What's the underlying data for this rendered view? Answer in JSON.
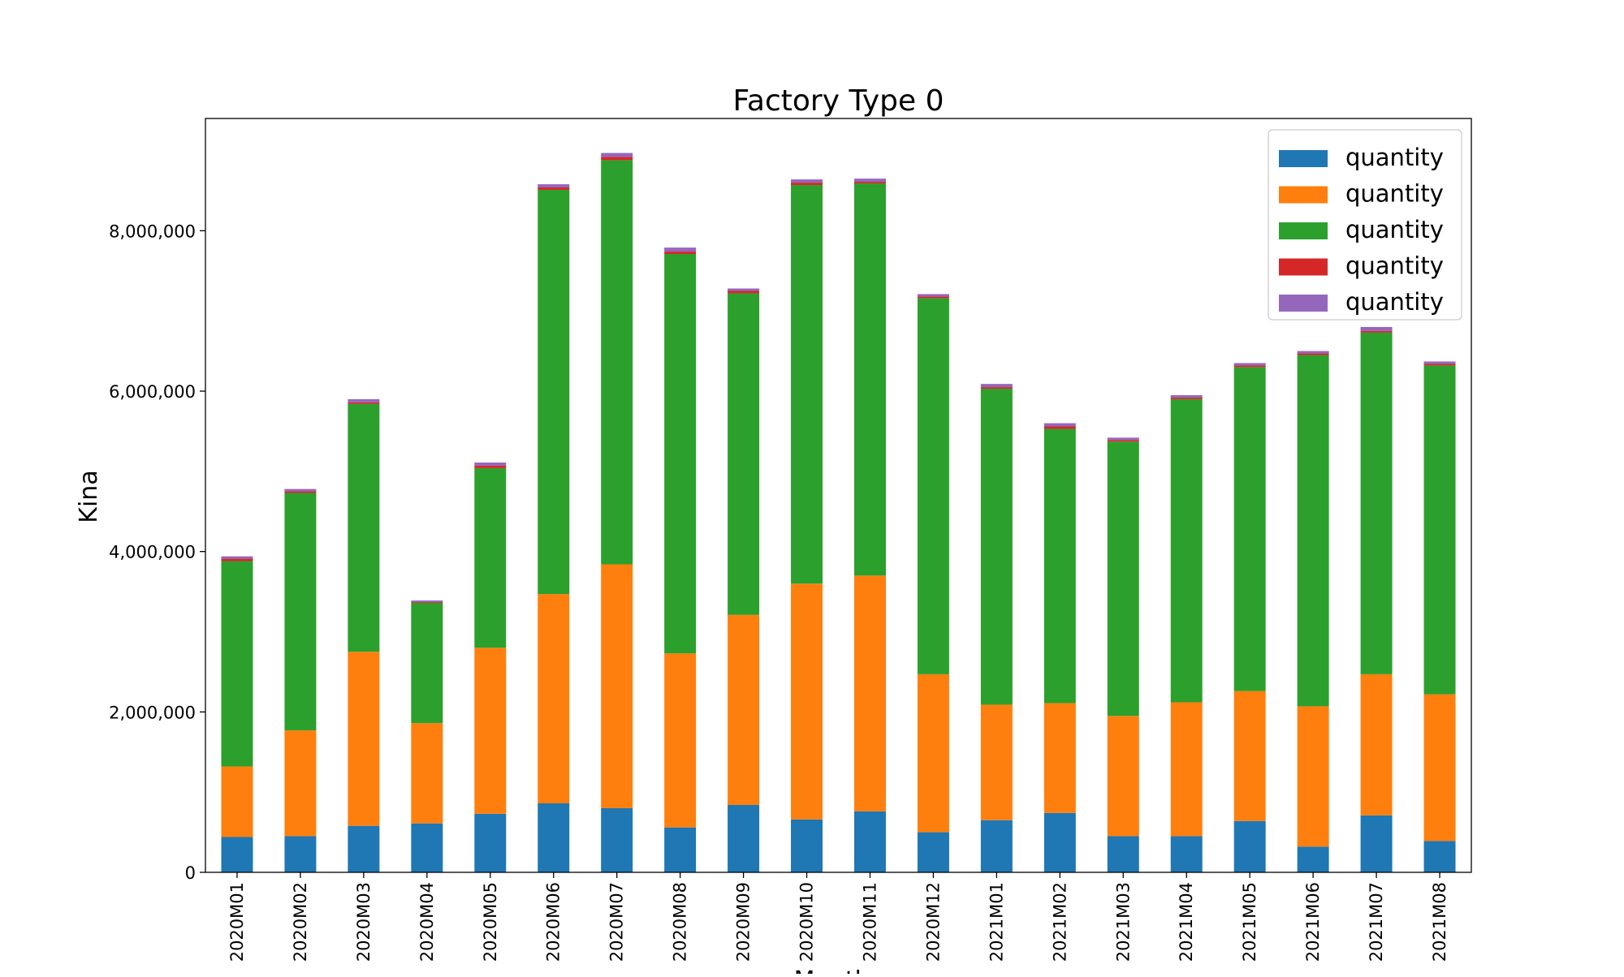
{
  "chart_data": {
    "type": "bar",
    "stacked": true,
    "title": "Factory Type 0",
    "xlabel": "Months",
    "ylabel": "Kina",
    "ylim": [
      0,
      9400000
    ],
    "yticks": [
      0,
      2000000,
      4000000,
      6000000,
      8000000
    ],
    "ytick_labels": [
      "0",
      "2,000,000",
      "4,000,000",
      "6,000,000",
      "8,000,000"
    ],
    "grid": false,
    "legend_position": "top-right",
    "categories": [
      "2020M01",
      "2020M02",
      "2020M03",
      "2020M04",
      "2020M05",
      "2020M06",
      "2020M07",
      "2020M08",
      "2020M09",
      "2020M10",
      "2020M11",
      "2020M12",
      "2021M01",
      "2021M02",
      "2021M03",
      "2021M04",
      "2021M05",
      "2021M06",
      "2021M07",
      "2021M08"
    ],
    "series": [
      {
        "name": "quantity",
        "color": "#1f77b4",
        "values": [
          440000,
          450000,
          580000,
          610000,
          730000,
          860000,
          800000,
          560000,
          840000,
          660000,
          760000,
          500000,
          650000,
          740000,
          450000,
          450000,
          640000,
          320000,
          710000,
          390000
        ]
      },
      {
        "name": "quantity",
        "color": "#ff7f0e",
        "values": [
          880000,
          1320000,
          2170000,
          1250000,
          2070000,
          2610000,
          3040000,
          2170000,
          2370000,
          2940000,
          2940000,
          1970000,
          1440000,
          1370000,
          1500000,
          1670000,
          1620000,
          1750000,
          1760000,
          1830000
        ]
      },
      {
        "name": "quantity",
        "color": "#2ca02c",
        "values": [
          2560000,
          2960000,
          3090000,
          1500000,
          2240000,
          5040000,
          5040000,
          4980000,
          4010000,
          4970000,
          4890000,
          4690000,
          3940000,
          3420000,
          3420000,
          3780000,
          4040000,
          4380000,
          4260000,
          4100000
        ]
      },
      {
        "name": "quantity",
        "color": "#d62728",
        "values": [
          30000,
          20000,
          20000,
          10000,
          30000,
          30000,
          40000,
          30000,
          30000,
          30000,
          20000,
          20000,
          20000,
          30000,
          20000,
          20000,
          20000,
          20000,
          20000,
          20000
        ]
      },
      {
        "name": "quantity",
        "color": "#9467bd",
        "values": [
          30000,
          30000,
          40000,
          20000,
          40000,
          40000,
          50000,
          50000,
          30000,
          40000,
          40000,
          30000,
          40000,
          40000,
          30000,
          30000,
          30000,
          30000,
          50000,
          30000
        ]
      }
    ]
  }
}
